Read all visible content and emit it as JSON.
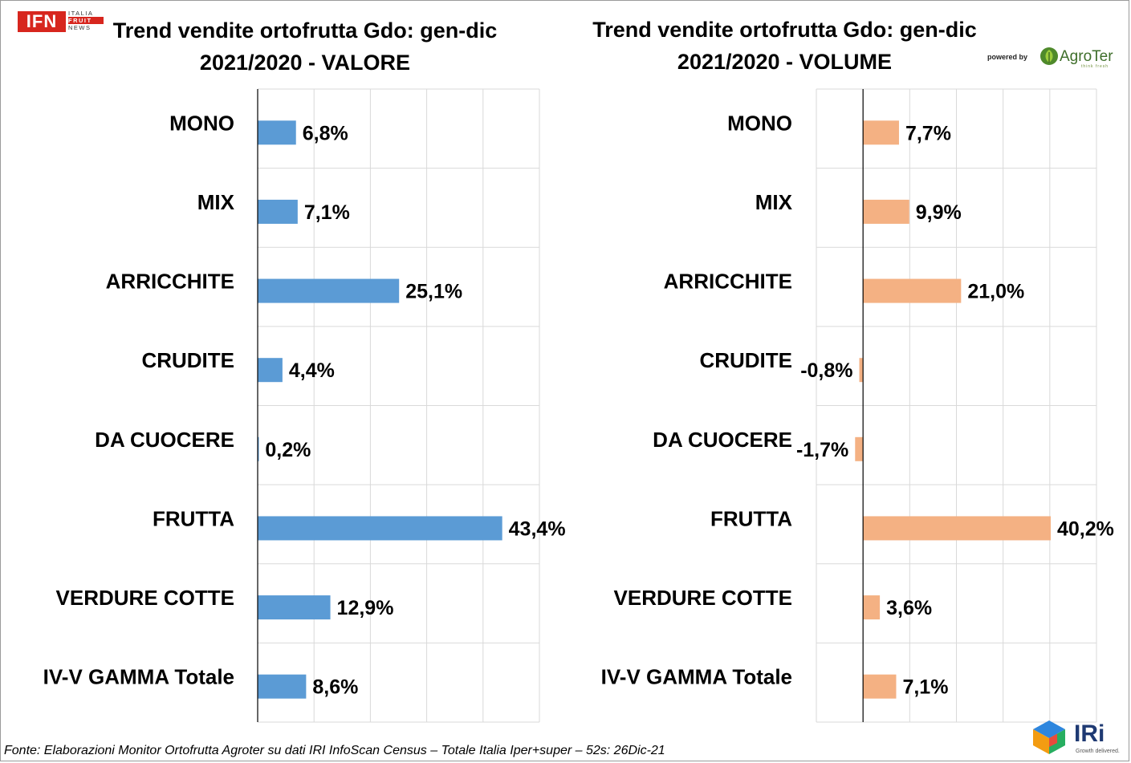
{
  "logos": {
    "ifn": {
      "mark": "IFN",
      "lines": [
        "ITALIA",
        "FRUIT",
        "NEWS"
      ]
    },
    "agroter": {
      "powered_by": "powered by",
      "name": "AgroTer",
      "tagline": "think fresh"
    },
    "iri": {
      "name": "IRi",
      "tagline": "Growth delivered."
    }
  },
  "source_note": "Fonte: Elaborazioni Monitor Ortofrutta Agroter su dati IRI InfoScan Census – Totale Italia Iper+super – 52s: 26Dic-21",
  "colors": {
    "valore": "#5b9bd5",
    "volume": "#f4b183",
    "grid": "#d9d9d9",
    "axis": "#000000"
  },
  "chart_data": [
    {
      "type": "bar",
      "orientation": "horizontal",
      "title_lines": [
        "Trend vendite ortofrutta Gdo: gen-dic",
        "2021/2020 - VALORE"
      ],
      "categories": [
        "MONO",
        "MIX",
        "ARRICCHITE",
        "CRUDITE",
        "DA CUOCERE",
        "FRUTTA",
        "VERDURE COTTE",
        "IV-V GAMMA Totale"
      ],
      "values": [
        6.8,
        7.1,
        25.1,
        4.4,
        0.2,
        43.4,
        12.9,
        8.6
      ],
      "value_labels": [
        "6,8%",
        "7,1%",
        "25,1%",
        "4,4%",
        "0,2%",
        "43,4%",
        "12,9%",
        "8,6%"
      ],
      "xlim": [
        0,
        50
      ],
      "grid": true,
      "xlabel": "",
      "ylabel": ""
    },
    {
      "type": "bar",
      "orientation": "horizontal",
      "title_lines": [
        "Trend vendite ortofrutta Gdo: gen-dic",
        "2021/2020 - VOLUME"
      ],
      "categories": [
        "MONO",
        "MIX",
        "ARRICCHITE",
        "CRUDITE",
        "DA CUOCERE",
        "FRUTTA",
        "VERDURE COTTE",
        "IV-V GAMMA Totale"
      ],
      "values": [
        7.7,
        9.9,
        21.0,
        -0.8,
        -1.7,
        40.2,
        3.6,
        7.1
      ],
      "value_labels": [
        "7,7%",
        "9,9%",
        "21,0%",
        "-0,8%",
        "-1,7%",
        "40,2%",
        "3,6%",
        "7,1%"
      ],
      "xlim": [
        -10,
        50
      ],
      "grid": true,
      "xlabel": "",
      "ylabel": ""
    }
  ]
}
